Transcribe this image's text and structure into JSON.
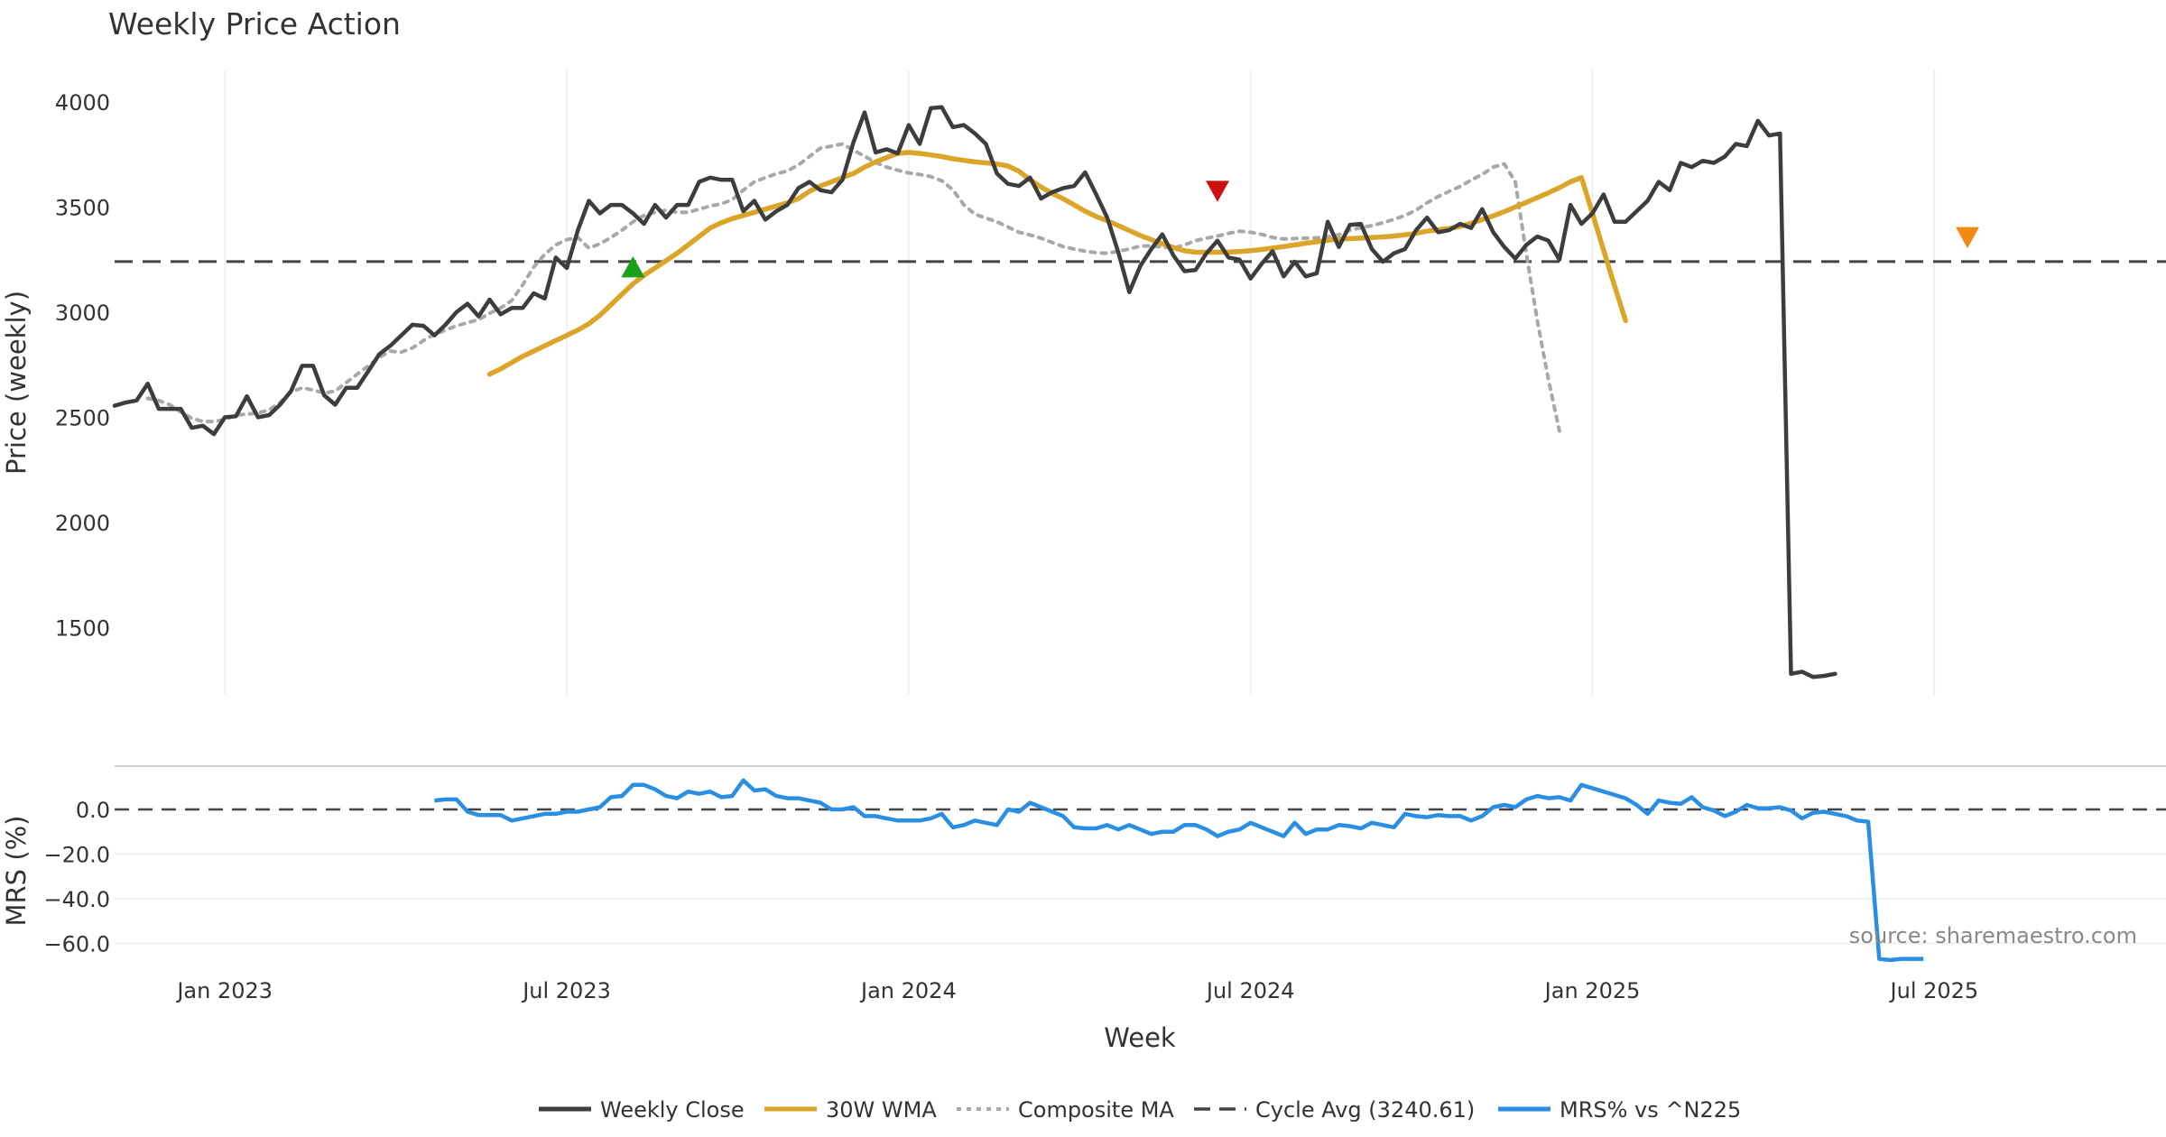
{
  "chart_data": [
    {
      "type": "line",
      "title": "Weekly Price Action",
      "ylabel": "Price (weekly)",
      "xlabel": "Week",
      "ylim": [
        1180,
        4150
      ],
      "yticks": [
        1500,
        2000,
        2500,
        3000,
        3500,
        4000
      ],
      "x_range_weeks": [
        0,
        186
      ],
      "x_tick_labels": [
        "Jan 2023",
        "Jul 2023",
        "Jan 2024",
        "Jul 2024",
        "Jan 2025",
        "Jul 2025"
      ],
      "x_tick_weeks": [
        10,
        41,
        72,
        103,
        134,
        165
      ],
      "reference_line": {
        "name": "Cycle Avg (3240.61)",
        "value": 3240.61
      },
      "series": [
        {
          "name": "Weekly Close",
          "color": "#3d3d3d",
          "start_week": 0,
          "values": [
            2555,
            2570,
            2580,
            2660,
            2540,
            2540,
            2540,
            2450,
            2460,
            2420,
            2500,
            2505,
            2600,
            2500,
            2510,
            2560,
            2625,
            2745,
            2745,
            2605,
            2560,
            2640,
            2640,
            2720,
            2800,
            2840,
            2890,
            2940,
            2935,
            2890,
            2940,
            3000,
            3040,
            2980,
            3060,
            2990,
            3020,
            3020,
            3090,
            3065,
            3260,
            3210,
            3390,
            3530,
            3470,
            3510,
            3510,
            3470,
            3420,
            3510,
            3450,
            3510,
            3510,
            3620,
            3640,
            3630,
            3630,
            3480,
            3530,
            3440,
            3480,
            3510,
            3590,
            3620,
            3580,
            3570,
            3630,
            3810,
            3950,
            3760,
            3775,
            3755,
            3890,
            3800,
            3970,
            3975,
            3880,
            3890,
            3850,
            3800,
            3660,
            3610,
            3600,
            3640,
            3540,
            3570,
            3590,
            3600,
            3665,
            3560,
            3450,
            3285,
            3095,
            3220,
            3300,
            3370,
            3270,
            3195,
            3200,
            3280,
            3340,
            3260,
            3250,
            3160,
            3230,
            3290,
            3170,
            3240,
            3170,
            3185,
            3430,
            3310,
            3415,
            3420,
            3300,
            3240,
            3280,
            3300,
            3390,
            3450,
            3380,
            3390,
            3420,
            3400,
            3490,
            3380,
            3310,
            3255,
            3320,
            3360,
            3340,
            3250,
            3510,
            3420,
            3470,
            3560,
            3430,
            3430,
            3480,
            3530,
            3620,
            3580,
            3710,
            3690,
            3720,
            3710,
            3740,
            3800,
            3790,
            3910,
            3840,
            3850,
            1280,
            1290,
            1265,
            1270,
            1280
          ]
        },
        {
          "name": "30W WMA",
          "color": "#dba52a",
          "start_week": 34,
          "values": [
            2705,
            2730,
            2760,
            2790,
            2815,
            2840,
            2865,
            2890,
            2915,
            2945,
            2985,
            3035,
            3085,
            3135,
            3175,
            3210,
            3245,
            3280,
            3320,
            3360,
            3400,
            3425,
            3445,
            3460,
            3475,
            3490,
            3505,
            3520,
            3540,
            3575,
            3600,
            3620,
            3640,
            3660,
            3690,
            3715,
            3735,
            3755,
            3760,
            3755,
            3748,
            3740,
            3730,
            3722,
            3715,
            3710,
            3705,
            3695,
            3670,
            3630,
            3595,
            3565,
            3540,
            3510,
            3480,
            3455,
            3435,
            3412,
            3388,
            3365,
            3345,
            3326,
            3307,
            3292,
            3285,
            3285,
            3285,
            3286,
            3288,
            3293,
            3298,
            3305,
            3312,
            3320,
            3328,
            3335,
            3342,
            3348,
            3350,
            3352,
            3355,
            3358,
            3362,
            3368,
            3375,
            3385,
            3392,
            3398,
            3408,
            3423,
            3440,
            3458,
            3478,
            3500,
            3522,
            3545,
            3568,
            3592,
            3620,
            3640,
            3470,
            3295,
            3125,
            2960
          ]
        },
        {
          "name": "Composite MA",
          "color": "#a8a8a8",
          "start_week": 3,
          "values": [
            2590,
            2580,
            2560,
            2525,
            2495,
            2480,
            2480,
            2490,
            2510,
            2515,
            2520,
            2535,
            2570,
            2620,
            2640,
            2630,
            2615,
            2625,
            2665,
            2705,
            2745,
            2785,
            2815,
            2810,
            2830,
            2865,
            2895,
            2915,
            2935,
            2950,
            2965,
            2995,
            3020,
            3055,
            3130,
            3215,
            3275,
            3320,
            3345,
            3355,
            3305,
            3325,
            3355,
            3390,
            3430,
            3460,
            3475,
            3485,
            3475,
            3475,
            3490,
            3505,
            3515,
            3535,
            3580,
            3620,
            3640,
            3658,
            3672,
            3700,
            3740,
            3780,
            3790,
            3800,
            3770,
            3742,
            3712,
            3690,
            3675,
            3662,
            3655,
            3645,
            3625,
            3582,
            3510,
            3466,
            3448,
            3430,
            3405,
            3380,
            3367,
            3352,
            3332,
            3312,
            3300,
            3290,
            3283,
            3280,
            3290,
            3300,
            3315,
            3315,
            3310,
            3305,
            3320,
            3340,
            3352,
            3362,
            3375,
            3385,
            3380,
            3370,
            3355,
            3348,
            3350,
            3352,
            3354,
            3358,
            3368,
            3390,
            3402,
            3412,
            3425,
            3442,
            3460,
            3485,
            3520,
            3550,
            3575,
            3598,
            3628,
            3655,
            3690,
            3705,
            3620,
            3280,
            2960,
            2680,
            2435
          ]
        }
      ],
      "markers": [
        {
          "type": "buy",
          "shape": "triangle-up",
          "week": 47,
          "value": 3210,
          "color": "#1aa01a"
        },
        {
          "type": "sell",
          "shape": "triangle-down",
          "week": 100,
          "value": 3580,
          "color": "#cc1111"
        },
        {
          "type": "sell",
          "shape": "triangle-down",
          "week": 168,
          "value": 3360,
          "color": "#f08a10"
        }
      ]
    },
    {
      "type": "line",
      "title": "",
      "ylabel": "MRS (%)",
      "xlabel": "Week",
      "ylim": [
        -72,
        19
      ],
      "yticks": [
        -60.0,
        -40.0,
        -20.0,
        0.0
      ],
      "ytick_labels": [
        "−60.0",
        "−40.0",
        "−20.0",
        "0.0"
      ],
      "reference_line": {
        "value": 0
      },
      "series": [
        {
          "name": "MRS% vs ^N225",
          "color": "#2a8ee3",
          "start_week": 29,
          "values": [
            4,
            4.5,
            4.5,
            -1,
            -2.5,
            -2.5,
            -2.5,
            -5,
            -4,
            -3,
            -2,
            -2,
            -1,
            -1,
            0,
            1,
            5.5,
            6,
            11,
            11,
            9,
            6,
            5,
            8,
            7,
            8,
            5.5,
            6,
            13,
            8.5,
            9,
            6,
            5,
            5,
            4,
            3,
            0,
            0,
            1,
            -3,
            -3,
            -4,
            -5,
            -5,
            -5,
            -4,
            -2,
            -8,
            -7,
            -5,
            -6,
            -7,
            0,
            -1,
            3,
            1,
            -1,
            -3,
            -8,
            -8.5,
            -8.5,
            -7,
            -9,
            -7,
            -9,
            -11,
            -10,
            -10,
            -7,
            -7,
            -9,
            -12,
            -10,
            -9,
            -6,
            -8,
            -10,
            -12,
            -6,
            -11,
            -9,
            -9,
            -7,
            -7.5,
            -8.5,
            -6,
            -7,
            -8,
            -2,
            -3,
            -3.5,
            -2.5,
            -3,
            -3,
            -5,
            -3,
            1,
            2,
            1,
            4.5,
            6,
            5,
            5.5,
            4,
            11,
            9.5,
            8,
            6.5,
            5,
            2,
            -2,
            4,
            3,
            2.5,
            5.5,
            1,
            -0.5,
            -3,
            -1,
            2,
            0.5,
            0.5,
            1,
            -0.5,
            -4,
            -1.5,
            -1,
            -2,
            -3,
            -5,
            -5.5,
            -67,
            -67.5,
            -67,
            -67,
            -67
          ]
        }
      ]
    }
  ],
  "legend": {
    "items": [
      {
        "label": "Weekly Close",
        "color": "#3d3d3d",
        "style": "solid"
      },
      {
        "label": "30W WMA",
        "color": "#dba52a",
        "style": "solid"
      },
      {
        "label": "Composite MA",
        "color": "#a8a8a8",
        "style": "dotted"
      },
      {
        "label": "Cycle Avg (3240.61)",
        "color": "#444444",
        "style": "dashed"
      },
      {
        "label": "MRS% vs ^N225",
        "color": "#2a8ee3",
        "style": "solid"
      }
    ]
  },
  "source": "source: sharemaestro.com"
}
